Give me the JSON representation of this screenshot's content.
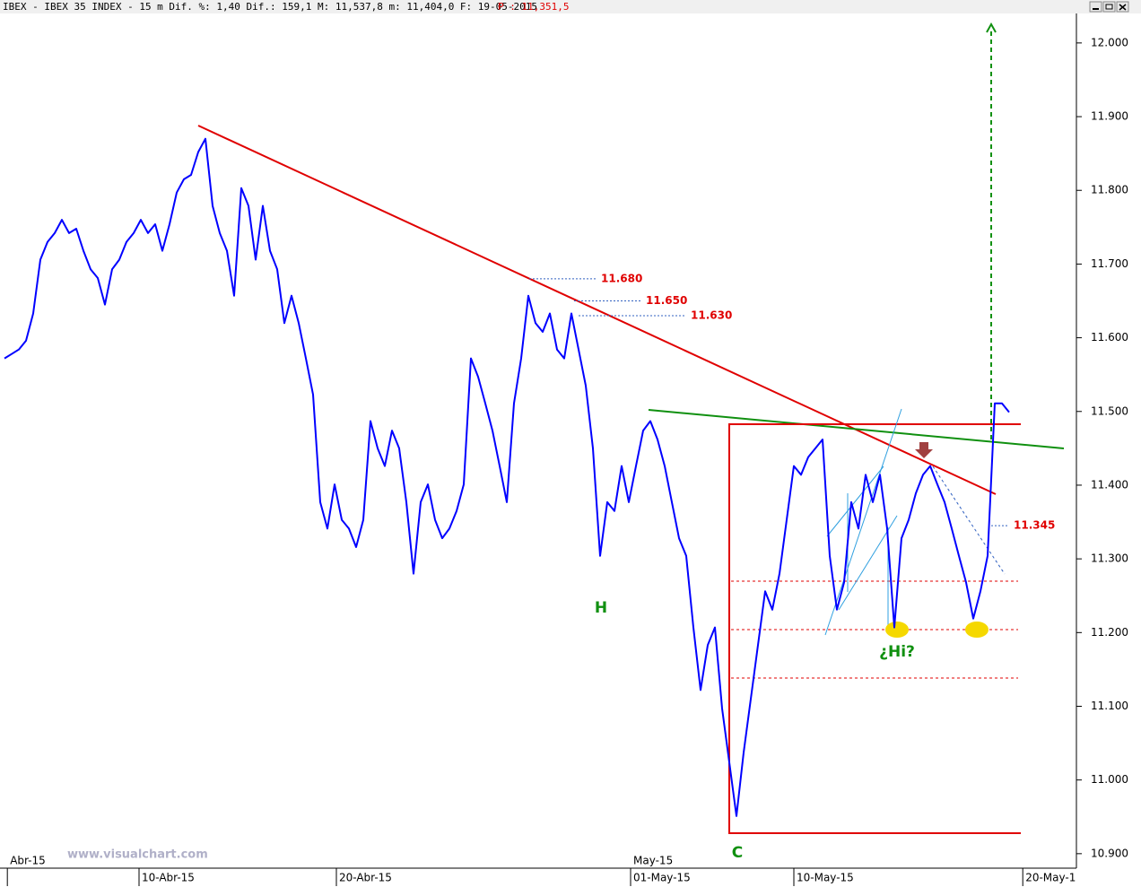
{
  "chart_data": {
    "type": "line",
    "header": "IBEX - IBEX 35 INDEX -  15 m Dif. %: 1,40 Dif.: 159,1 M: 11,537,8 m: 11,404,0 F: 19-05-2015",
    "header_price": "P : 11,351,5",
    "watermark": "www.visualchart.com",
    "annotations": [
      "H",
      "C",
      "¿Hi?"
    ],
    "series": [
      {
        "name": "IBEX 35 INDEX",
        "color": "#0000ff",
        "values": [
          11572,
          11578,
          11584,
          11596,
          11633,
          11706,
          11730,
          11742,
          11760,
          11742,
          11748,
          11718,
          11693,
          11681,
          11645,
          11693,
          11706,
          11730,
          11742,
          11760,
          11742,
          11754,
          11718,
          11754,
          11797,
          11815,
          11821,
          11852,
          11870,
          11779,
          11742,
          11718,
          11657,
          11803,
          11779,
          11706,
          11779,
          11718,
          11693,
          11620,
          11657,
          11620,
          11572,
          11523,
          11377,
          11341,
          11401,
          11353,
          11341,
          11316,
          11353,
          11487,
          11450,
          11426,
          11474,
          11450,
          11377,
          11280,
          11377,
          11401,
          11353,
          11328,
          11341,
          11365,
          11401,
          11572,
          11547,
          11511,
          11474,
          11426,
          11377,
          11511,
          11572,
          11657,
          11620,
          11608,
          11633,
          11584,
          11572,
          11633,
          11584,
          11535,
          11450,
          11304,
          11377,
          11365,
          11426,
          11377,
          11426,
          11474,
          11487,
          11462,
          11426,
          11377,
          11328,
          11304,
          11207,
          11122,
          11183,
          11207,
          11097,
          11024,
          10951,
          11037,
          11110,
          11183,
          11256,
          11231,
          11280,
          11353,
          11426,
          11414,
          11438,
          11450,
          11462,
          11304,
          11231,
          11268,
          11377,
          11341,
          11414,
          11377,
          11414,
          11341,
          11207,
          11328,
          11353,
          11389,
          11414,
          11426,
          11401,
          11377,
          11341,
          11304,
          11268,
          11219,
          11256,
          11304,
          11511,
          11511,
          11499
        ]
      }
    ],
    "xlim": [
      0,
      149.4
    ],
    "xticks_major": [
      {
        "value": 0.4,
        "label": "Abr-15"
      },
      {
        "value": 87.25,
        "label": "May-15"
      }
    ],
    "xticks": [
      {
        "value": 18.75,
        "label": "10-Abr-15"
      },
      {
        "value": 46.25,
        "label": "20-Abr-15"
      },
      {
        "value": 87.25,
        "label": "01-May-15"
      },
      {
        "value": 110,
        "label": "10-May-15"
      },
      {
        "value": 141.9,
        "label": "20-May-1"
      }
    ],
    "ylim": [
      10884,
      12040
    ],
    "yticks": [
      {
        "value": 10900,
        "label": "10.900"
      },
      {
        "value": 11000,
        "label": "11.000"
      },
      {
        "value": 11100,
        "label": "11.100"
      },
      {
        "value": 11200,
        "label": "11.200"
      },
      {
        "value": 11300,
        "label": "11.300"
      },
      {
        "value": 11400,
        "label": "11.400"
      },
      {
        "value": 11500,
        "label": "11.500"
      },
      {
        "value": 11600,
        "label": "11.600"
      },
      {
        "value": 11700,
        "label": "11.700"
      },
      {
        "value": 11800,
        "label": "11.800"
      },
      {
        "value": 11900,
        "label": "11.900"
      },
      {
        "value": 12000,
        "label": "12.000"
      }
    ],
    "levels": [
      {
        "value": 11680,
        "label": "11.680"
      },
      {
        "value": 11650,
        "label": "11.650"
      },
      {
        "value": 11630,
        "label": "11.630"
      },
      {
        "value": 11345,
        "label": "11.345"
      }
    ]
  }
}
